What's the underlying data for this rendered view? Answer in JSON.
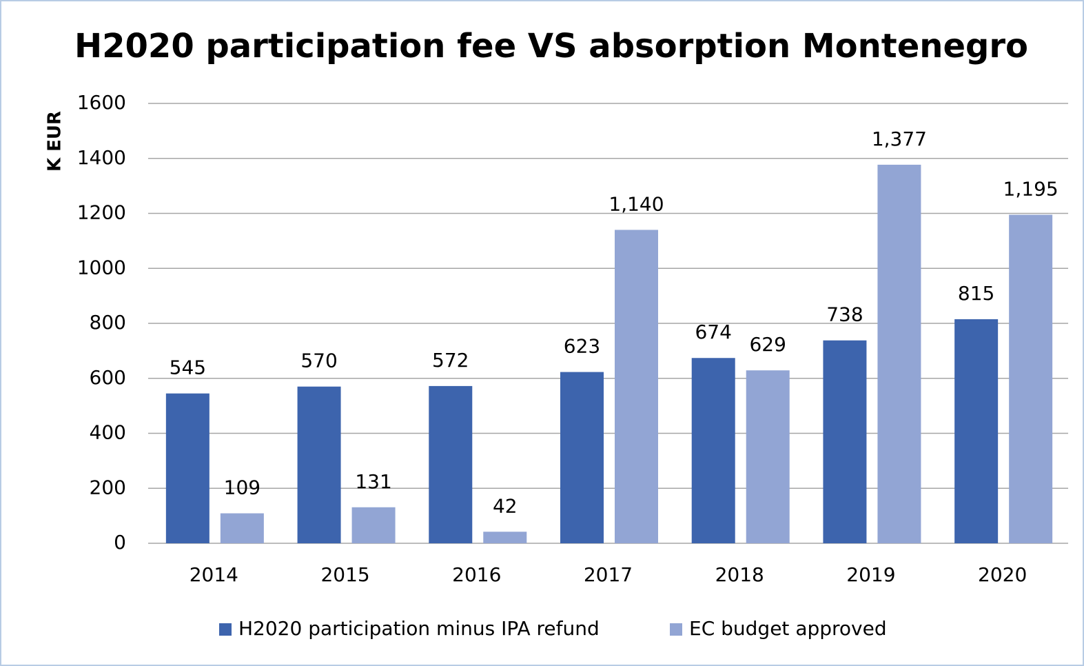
{
  "chart_data": {
    "type": "bar",
    "title": "H2020 participation fee VS absorption Montenegro",
    "y_label": "K EUR",
    "categories": [
      "2014",
      "2015",
      "2016",
      "2017",
      "2018",
      "2019",
      "2020"
    ],
    "series": [
      {
        "name": "H2020 participation minus IPA refund",
        "color": "#3d64ad",
        "values": [
          545,
          570,
          572,
          623,
          674,
          738,
          815
        ]
      },
      {
        "name": "EC budget approved",
        "color": "#92a5d4",
        "values": [
          109,
          131,
          42,
          1140,
          629,
          1377,
          1195
        ],
        "value_labels": [
          "109",
          "131",
          "42",
          "1,140",
          "629",
          "1,377",
          "1,195"
        ]
      }
    ],
    "ylim": [
      0,
      1600
    ],
    "yticks": [
      0,
      200,
      400,
      600,
      800,
      1000,
      1200,
      1400,
      1600
    ],
    "grid": true
  }
}
